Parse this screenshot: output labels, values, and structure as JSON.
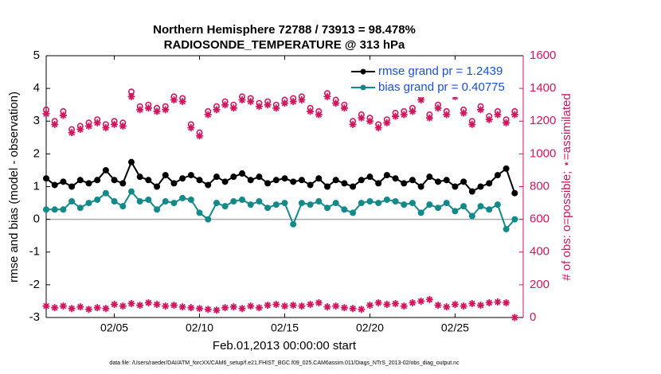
{
  "chart_data": {
    "type": "line",
    "title": "Northern Hemisphere 72788 / 73913 = 98.478%",
    "subtitle": "RADIOSONDE_TEMPERATURE @ 313 hPa",
    "xlabel": "Feb.01,2013 00:00:00 start",
    "ylabel": "rmse and bias (model - observation)",
    "y2label": "# of obs: o=possible; ⋆=assimilated",
    "footnote": "data file: /Users/raeder/DAI/ATM_forcXX/CAM6_setup/f.e21.FHIST_BGC.f09_025.CAM6assim.011/Diags_NTrS_2013-02/obs_diag_output.nc",
    "legend": "northeast",
    "xlim": [
      1,
      29
    ],
    "xticks": [
      {
        "value": 5,
        "label": "02/05"
      },
      {
        "value": 10,
        "label": "02/10"
      },
      {
        "value": 15,
        "label": "02/15"
      },
      {
        "value": 20,
        "label": "02/20"
      },
      {
        "value": 25,
        "label": "02/25"
      }
    ],
    "ylim": [
      -3,
      5
    ],
    "yticks": [
      -3,
      -2,
      -1,
      0,
      1,
      2,
      3,
      4,
      5
    ],
    "y2lim": [
      0,
      1600
    ],
    "y2ticks": [
      0,
      200,
      400,
      600,
      800,
      1000,
      1200,
      1400,
      1600
    ],
    "x": [
      1,
      1.5,
      2,
      2.5,
      3,
      3.5,
      4,
      4.5,
      5,
      5.5,
      6,
      6.5,
      7,
      7.5,
      8,
      8.5,
      9,
      9.5,
      10,
      10.5,
      11,
      11.5,
      12,
      12.5,
      13,
      13.5,
      14,
      14.5,
      15,
      15.5,
      16,
      16.5,
      17,
      17.5,
      18,
      18.5,
      19,
      19.5,
      20,
      20.5,
      21,
      21.5,
      22,
      22.5,
      23,
      23.5,
      24,
      24.5,
      25,
      25.5,
      26,
      26.5,
      27,
      27.5,
      28,
      28.5
    ],
    "series": [
      {
        "name": "rmse grand pr = 1.2439",
        "color": "#000000",
        "marker": "o",
        "line": true,
        "values": [
          1.25,
          1.05,
          1.15,
          1.0,
          1.2,
          1.1,
          1.2,
          1.5,
          1.2,
          1.1,
          1.75,
          1.3,
          1.2,
          1.0,
          1.35,
          1.1,
          1.25,
          1.35,
          1.2,
          1.05,
          1.3,
          1.15,
          1.3,
          1.4,
          1.2,
          1.3,
          1.1,
          1.2,
          1.25,
          1.15,
          1.2,
          1.05,
          1.25,
          1.0,
          1.2,
          1.1,
          1.0,
          1.2,
          1.3,
          1.1,
          1.35,
          1.25,
          1.1,
          1.2,
          1.0,
          1.3,
          1.15,
          1.2,
          1.0,
          1.15,
          0.85,
          1.0,
          1.1,
          1.35,
          1.55,
          0.8
        ]
      },
      {
        "name": "bias grand pr = 0.40775",
        "color": "#138a8a",
        "marker": "o",
        "line": true,
        "values": [
          0.3,
          0.3,
          0.3,
          0.55,
          0.35,
          0.5,
          0.6,
          0.8,
          0.55,
          0.4,
          0.85,
          0.55,
          0.6,
          0.3,
          0.55,
          0.5,
          0.65,
          0.6,
          0.2,
          0.0,
          0.5,
          0.4,
          0.55,
          0.6,
          0.45,
          0.55,
          0.35,
          0.45,
          0.5,
          -0.15,
          0.5,
          0.45,
          0.55,
          0.35,
          0.5,
          0.3,
          0.2,
          0.5,
          0.55,
          0.5,
          0.6,
          0.55,
          0.45,
          0.5,
          0.2,
          0.45,
          0.35,
          0.5,
          0.25,
          0.4,
          0.1,
          0.4,
          0.3,
          0.45,
          -0.3,
          0.0
        ]
      },
      {
        "color": "#d0165f",
        "marker": "o",
        "axis": "y2",
        "values": [
          1270,
          1200,
          1260,
          1150,
          1170,
          1190,
          1210,
          1180,
          1200,
          1190,
          1380,
          1290,
          1300,
          1280,
          1290,
          1350,
          1340,
          1180,
          1130,
          1260,
          1290,
          1320,
          1300,
          1350,
          1340,
          1310,
          1320,
          1300,
          1330,
          1340,
          1350,
          1280,
          1260,
          1370,
          1330,
          1300,
          1200,
          1240,
          1220,
          1180,
          1210,
          1250,
          1260,
          1280,
          1350,
          1240,
          1300,
          1260,
          1370,
          1270,
          1200,
          1290,
          1230,
          1260,
          1210,
          1260
        ]
      },
      {
        "color": "#d0165f",
        "marker": "*",
        "axis": "y2",
        "values": [
          1245,
          1180,
          1235,
          1130,
          1150,
          1170,
          1190,
          1160,
          1180,
          1170,
          1350,
          1270,
          1280,
          1260,
          1270,
          1330,
          1320,
          1160,
          1110,
          1240,
          1270,
          1300,
          1280,
          1330,
          1320,
          1290,
          1300,
          1280,
          1310,
          1320,
          1330,
          1260,
          1240,
          1350,
          1310,
          1280,
          1180,
          1220,
          1200,
          1160,
          1190,
          1230,
          1240,
          1260,
          1330,
          1220,
          1280,
          1240,
          1350,
          1250,
          1180,
          1270,
          1210,
          1240,
          1190,
          1240
        ]
      },
      {
        "color": "#d0165f",
        "marker": "*",
        "axis": "y2",
        "values": [
          70,
          60,
          70,
          55,
          65,
          50,
          60,
          55,
          80,
          70,
          85,
          75,
          90,
          80,
          70,
          75,
          65,
          60,
          55,
          50,
          45,
          60,
          65,
          55,
          70,
          60,
          75,
          80,
          70,
          75,
          70,
          80,
          90,
          65,
          70,
          60,
          55,
          50,
          75,
          90,
          80,
          85,
          70,
          90,
          100,
          110,
          75,
          65,
          80,
          70,
          85,
          75,
          90,
          95,
          90,
          0
        ]
      }
    ]
  }
}
